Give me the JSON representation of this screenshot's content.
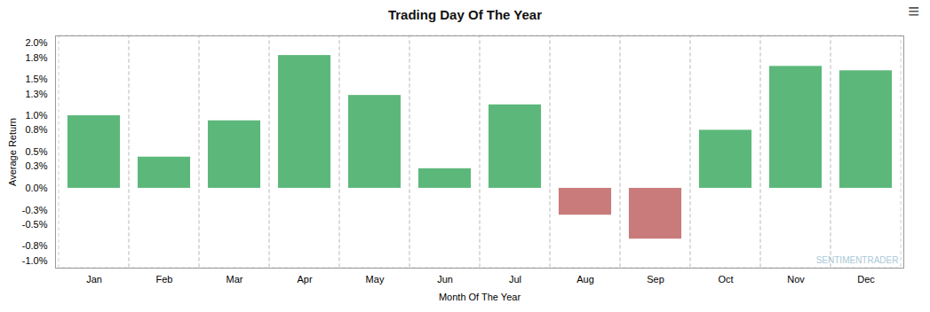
{
  "chart_data": {
    "type": "bar",
    "title": "Trading Day Of The Year",
    "xlabel": "Month Of The Year",
    "ylabel": "Average Return",
    "categories": [
      "Jan",
      "Feb",
      "Mar",
      "Apr",
      "May",
      "Jun",
      "Jul",
      "Aug",
      "Sep",
      "Oct",
      "Nov",
      "Dec"
    ],
    "values": [
      1.0,
      0.43,
      0.93,
      1.83,
      1.28,
      0.27,
      1.15,
      -0.37,
      -0.7,
      0.8,
      1.68,
      1.62
    ],
    "colors": [
      "#5cb87a",
      "#5cb87a",
      "#5cb87a",
      "#5cb87a",
      "#5cb87a",
      "#5cb87a",
      "#5cb87a",
      "#c97b7b",
      "#c97b7b",
      "#5cb87a",
      "#5cb87a",
      "#5cb87a"
    ],
    "ylim": [
      -1.1,
      2.1
    ],
    "yticks": [
      {
        "value": -1.0,
        "label": "-1.0%"
      },
      {
        "value": -0.8,
        "label": "-0.8%"
      },
      {
        "value": -0.5,
        "label": "-0.5%"
      },
      {
        "value": -0.3,
        "label": "-0.3%"
      },
      {
        "value": 0.0,
        "label": "0.0%"
      },
      {
        "value": 0.3,
        "label": "0.3%"
      },
      {
        "value": 0.5,
        "label": "0.5%"
      },
      {
        "value": 0.8,
        "label": "0.8%"
      },
      {
        "value": 1.0,
        "label": "1.0%"
      },
      {
        "value": 1.3,
        "label": "1.3%"
      },
      {
        "value": 1.5,
        "label": "1.5%"
      },
      {
        "value": 1.8,
        "label": "1.8%"
      },
      {
        "value": 2.0,
        "label": "2.0%"
      }
    ],
    "grid": true,
    "annotations": [
      "SENTIMENTRADER",
      "≡"
    ]
  }
}
